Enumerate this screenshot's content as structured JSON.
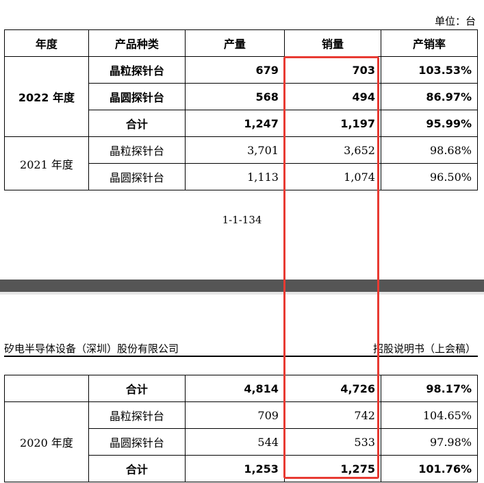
{
  "unit_label": "单位：台",
  "table1": {
    "headers": [
      "年度",
      "产品种类",
      "产量",
      "销量",
      "产销率"
    ],
    "rows": [
      {
        "year": "2022 年度",
        "type": "晶粒探针台",
        "production": "679",
        "sales": "703",
        "rate": "103.53%"
      },
      {
        "type": "晶圆探针台",
        "production": "568",
        "sales": "494",
        "rate": "86.97%"
      },
      {
        "type": "合计",
        "production": "1,247",
        "sales": "1,197",
        "rate": "95.99%"
      },
      {
        "year": "2021 年度",
        "type": "晶粒探针台",
        "production": "3,701",
        "sales": "3,652",
        "rate": "98.68%"
      },
      {
        "type": "晶圆探针台",
        "production": "1,113",
        "sales": "1,074",
        "rate": "96.50%"
      }
    ]
  },
  "page_number": "1-1-134",
  "page_header": {
    "company": "矽电半导体设备（深圳）股份有限公司",
    "doc": "招股说明书（上会稿）"
  },
  "table2": {
    "rows": [
      {
        "type": "合计",
        "production": "4,814",
        "sales": "4,726",
        "rate": "98.17%"
      },
      {
        "year": "2020 年度",
        "type": "晶粒探针台",
        "production": "709",
        "sales": "742",
        "rate": "104.65%"
      },
      {
        "type": "晶圆探针台",
        "production": "544",
        "sales": "533",
        "rate": "97.98%"
      },
      {
        "type": "合计",
        "production": "1,253",
        "sales": "1,275",
        "rate": "101.76%"
      }
    ]
  },
  "colors": {
    "highlight": "#e83a32",
    "band": "#555555"
  }
}
